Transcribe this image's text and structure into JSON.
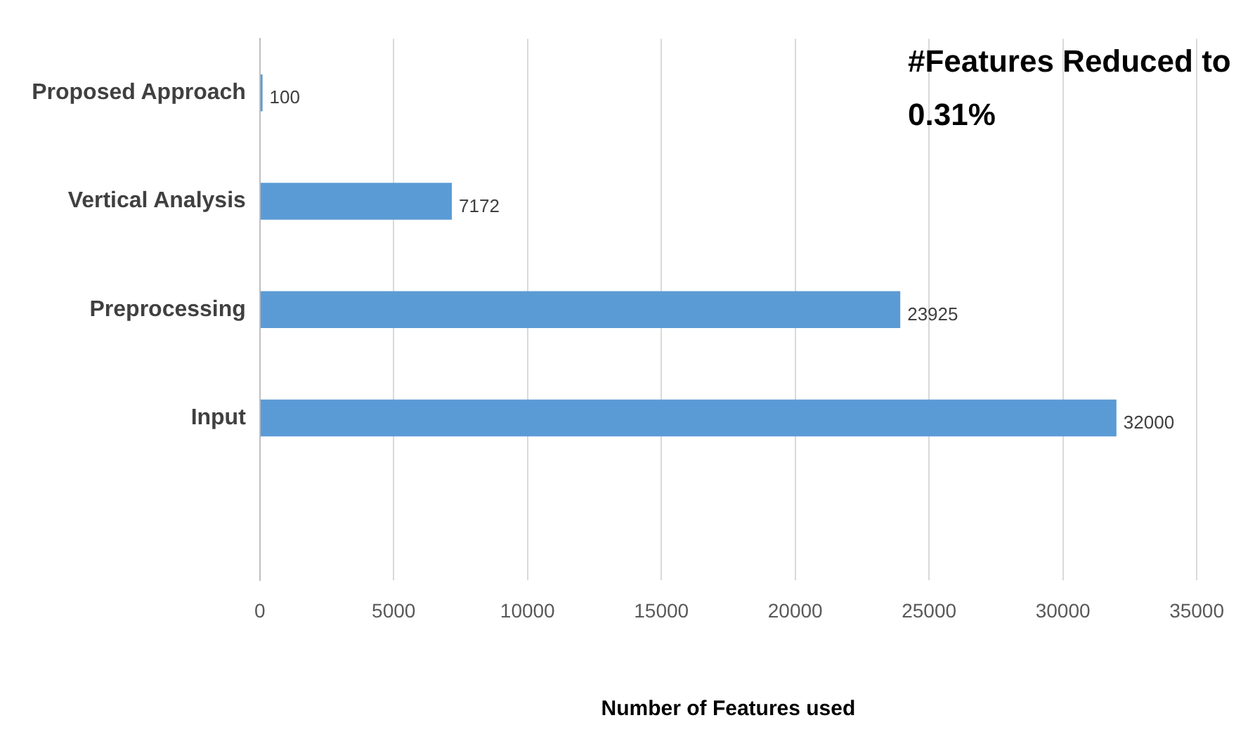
{
  "chart_data": {
    "type": "bar",
    "orientation": "horizontal",
    "xlabel": "Number of Features used",
    "categories": [
      "Proposed Approach",
      "Vertical Analysis",
      "Preprocessing",
      "Input",
      null
    ],
    "values": [
      100,
      7172,
      23925,
      32000,
      null
    ],
    "color": "#5b9bd5",
    "xlim": [
      0,
      35000
    ],
    "xticks": [
      0,
      5000,
      10000,
      15000,
      20000,
      25000,
      30000,
      35000
    ],
    "grid": "x",
    "data_labels": true,
    "annotations": [
      "#Features Reduced to 0.31%"
    ]
  }
}
